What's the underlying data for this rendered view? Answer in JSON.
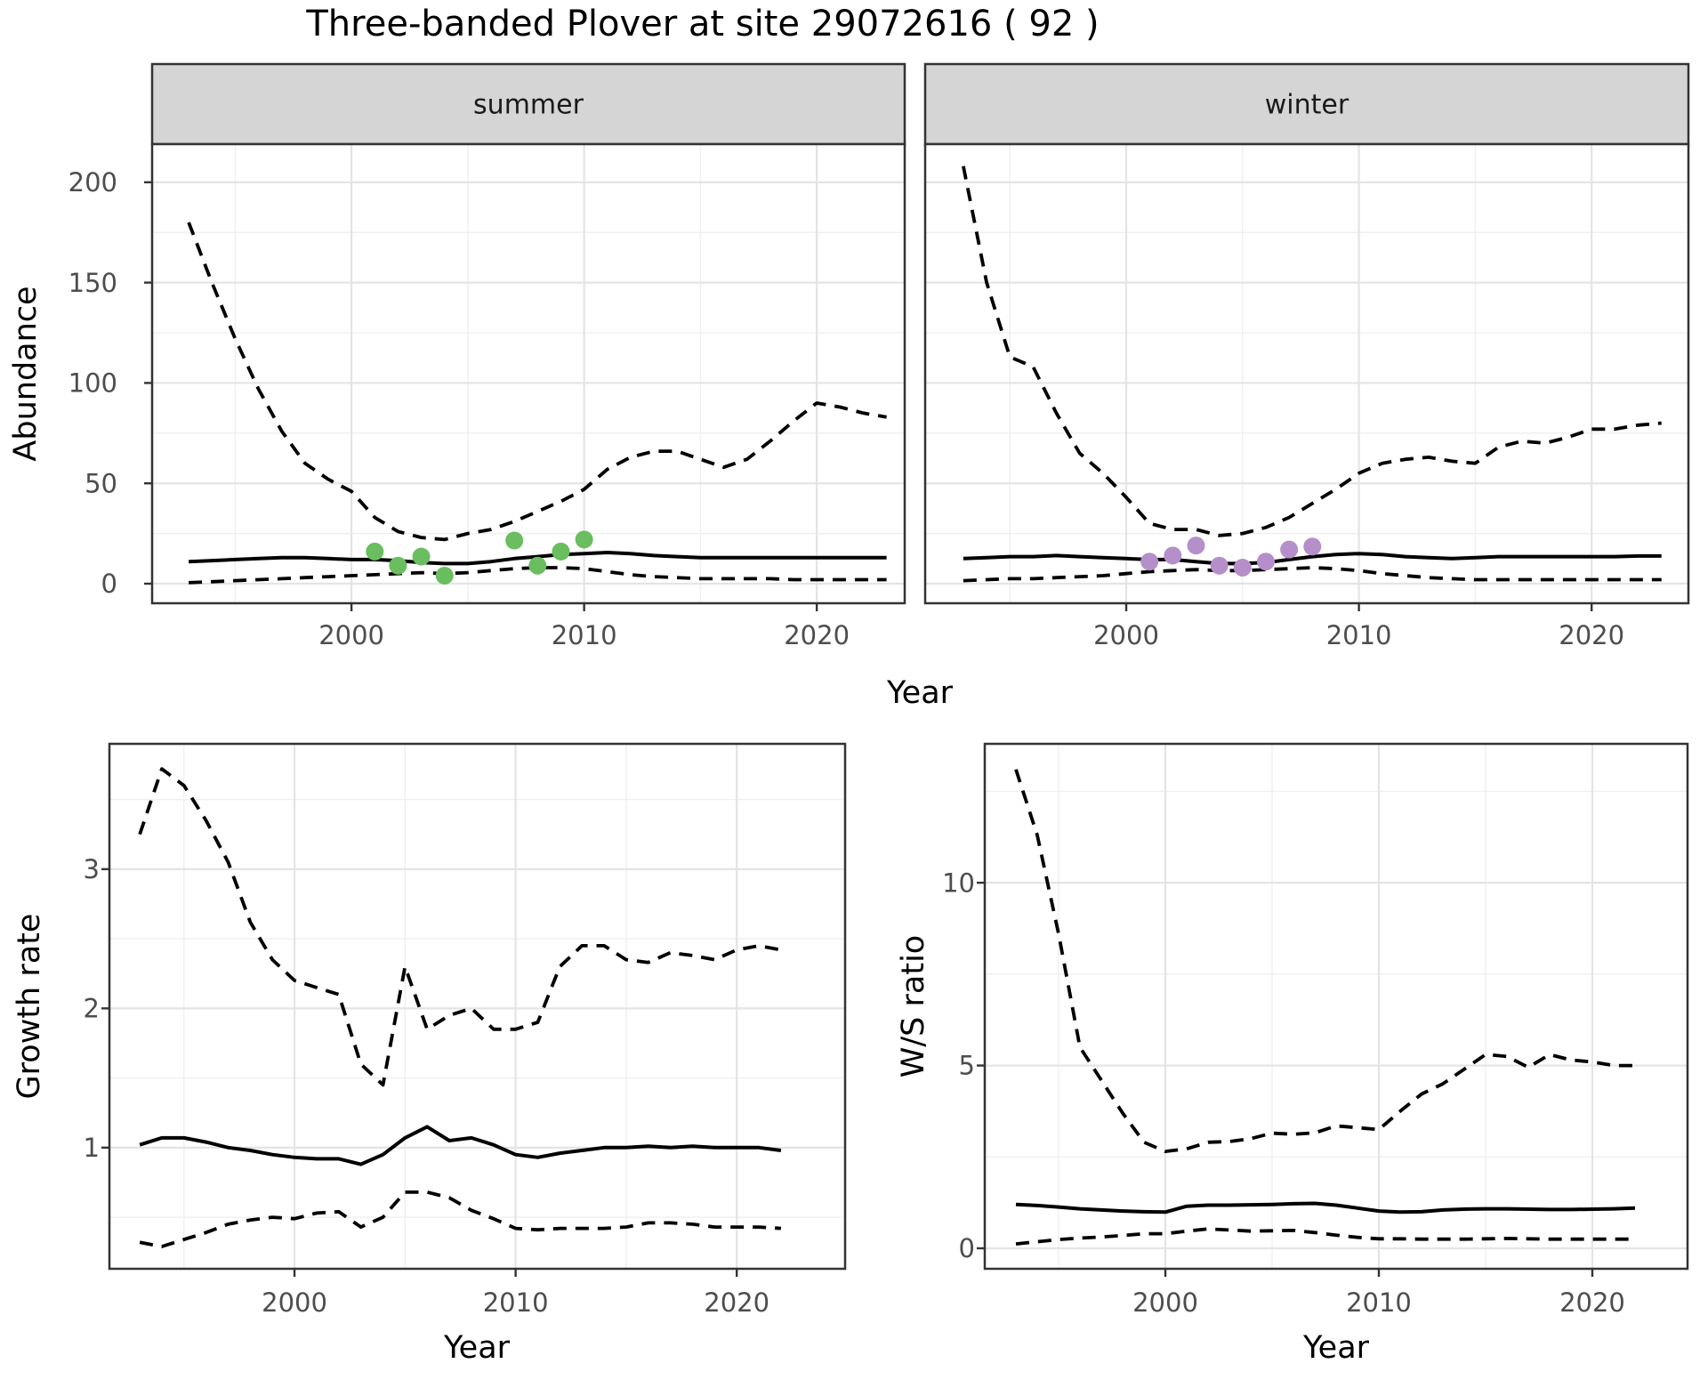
{
  "title": "Three-banded Plover at site 29072616 ( 92 )",
  "colors": {
    "summer_points": "#6abe5f",
    "winter_points": "#b58fc9",
    "line": "#000000",
    "strip_bg": "#d5d5d5",
    "panel_bg": "#ffffff",
    "grid_major": "#e4e4e4",
    "grid_minor": "#efefef",
    "panel_border": "#333333",
    "tick_text": "#4d4d4d",
    "axis_title_text": "#000000"
  },
  "chart_data": {
    "abundance": {
      "type": "line",
      "xlabel": "Year",
      "ylabel": "Abundance",
      "facets": [
        "summer",
        "winter"
      ],
      "legend": "none",
      "grid": "on",
      "years": [
        1993,
        1994,
        1995,
        1996,
        1997,
        1998,
        1999,
        2000,
        2001,
        2002,
        2003,
        2004,
        2005,
        2006,
        2007,
        2008,
        2009,
        2010,
        2011,
        2012,
        2013,
        2014,
        2015,
        2016,
        2017,
        2018,
        2019,
        2020,
        2021,
        2022,
        2023
      ],
      "x_ticks": [
        2000,
        2010,
        2020
      ],
      "x_minor_ticks": [
        1995,
        2005,
        2015
      ],
      "y_ticks": [
        0,
        50,
        100,
        150,
        200
      ],
      "y_minor_ticks": [
        25,
        75,
        125,
        175
      ],
      "ylim": [
        -9.75,
        219
      ],
      "panels": [
        {
          "facet": "summer",
          "xlim": [
            1991.43,
            2023.78
          ],
          "series": [
            {
              "name": "upper_ci",
              "style": "dashed",
              "values": [
                180,
                150,
                122,
                97,
                76,
                60,
                52,
                46,
                33,
                26,
                23,
                22,
                25,
                27,
                31,
                36,
                41,
                47,
                57,
                63,
                66,
                66,
                62,
                58,
                62,
                71,
                81,
                90,
                88,
                85,
                83
              ]
            },
            {
              "name": "median",
              "style": "solid",
              "values": [
                11,
                11.5,
                12,
                12.5,
                13,
                13,
                12.5,
                12,
                12,
                11.5,
                10.5,
                10,
                10,
                11,
                12.5,
                13.5,
                14.5,
                15,
                15.5,
                15,
                14,
                13.5,
                13,
                13,
                13,
                13,
                13,
                13,
                13,
                13,
                13
              ]
            },
            {
              "name": "lower_ci",
              "style": "dashed",
              "values": [
                0.5,
                1,
                1.5,
                2,
                2.5,
                3,
                3.5,
                4,
                4.5,
                5,
                5.5,
                5,
                5.5,
                6.5,
                7.5,
                8,
                8,
                7.5,
                6,
                4.5,
                3.5,
                3,
                2.5,
                2.5,
                2.5,
                2.5,
                2,
                2,
                2,
                2,
                2
              ]
            }
          ],
          "observations": {
            "years": [
              2001,
              2002,
              2003,
              2004,
              2007,
              2008,
              2009,
              2010
            ],
            "values": [
              16,
              9,
              13.5,
              4,
              21.5,
              9,
              16,
              22
            ],
            "color": "#6abe5f"
          }
        },
        {
          "facet": "winter",
          "xlim": [
            1991.36,
            2024.16
          ],
          "series": [
            {
              "name": "upper_ci",
              "style": "dashed",
              "values": [
                208,
                150,
                113,
                108,
                85,
                65,
                55,
                43,
                30,
                27,
                27,
                24,
                25,
                28,
                33,
                40,
                47,
                55,
                60,
                62,
                63,
                61,
                60,
                68,
                71,
                70,
                73,
                77,
                77,
                79,
                80
              ]
            },
            {
              "name": "median",
              "style": "solid",
              "values": [
                12.5,
                13,
                13.5,
                13.5,
                14,
                13.5,
                13,
                12.5,
                12,
                12,
                11,
                10,
                10,
                10.5,
                12,
                13.5,
                14.5,
                15,
                14.5,
                13.5,
                13,
                12.5,
                13,
                13.5,
                13.5,
                13.5,
                13.5,
                13.5,
                13.5,
                13.8,
                13.8
              ]
            },
            {
              "name": "lower_ci",
              "style": "dashed",
              "values": [
                1.5,
                2,
                2.5,
                2.5,
                3,
                3.5,
                4,
                5,
                6,
                6.5,
                7,
                6.5,
                6.5,
                7,
                7.5,
                8,
                7.5,
                6.5,
                5,
                4,
                3,
                2.5,
                2,
                2,
                2,
                2,
                2,
                2,
                2,
                2,
                2
              ]
            }
          ],
          "observations": {
            "years": [
              2001,
              2002,
              2003,
              2004,
              2005,
              2006,
              2007,
              2008
            ],
            "values": [
              11,
              14,
              19,
              9,
              8,
              11,
              17,
              18.5
            ],
            "color": "#b58fc9"
          }
        }
      ]
    },
    "growth_rate": {
      "type": "line",
      "xlabel": "Year",
      "ylabel": "Growth rate",
      "grid": "on",
      "years": [
        1993,
        1994,
        1995,
        1996,
        1997,
        1998,
        1999,
        2000,
        2001,
        2002,
        2003,
        2004,
        2005,
        2006,
        2007,
        2008,
        2009,
        2010,
        2011,
        2012,
        2013,
        2014,
        2015,
        2016,
        2017,
        2018,
        2019,
        2020,
        2021,
        2022
      ],
      "x_ticks": [
        2000,
        2010,
        2020
      ],
      "x_minor_ticks": [
        1995,
        2005,
        2015
      ],
      "y_ticks": [
        1,
        2,
        3
      ],
      "y_minor_ticks": [
        0.5,
        1.5,
        2.5,
        3.5
      ],
      "ylim": [
        0.13,
        3.9
      ],
      "xlim": [
        1991.63,
        2024.9
      ],
      "series": [
        {
          "name": "upper_ci",
          "style": "dashed",
          "values": [
            3.25,
            3.72,
            3.6,
            3.35,
            3.05,
            2.62,
            2.35,
            2.2,
            2.15,
            2.1,
            1.6,
            1.45,
            2.3,
            1.85,
            1.95,
            2.0,
            1.85,
            1.85,
            1.9,
            2.3,
            2.45,
            2.45,
            2.35,
            2.33,
            2.4,
            2.38,
            2.35,
            2.42,
            2.45,
            2.42
          ]
        },
        {
          "name": "median",
          "style": "solid",
          "values": [
            1.02,
            1.07,
            1.07,
            1.04,
            1.0,
            0.98,
            0.95,
            0.93,
            0.92,
            0.92,
            0.88,
            0.95,
            1.07,
            1.15,
            1.05,
            1.07,
            1.02,
            0.95,
            0.93,
            0.96,
            0.98,
            1.0,
            1.0,
            1.01,
            1.0,
            1.01,
            1.0,
            1.0,
            1.0,
            0.98
          ]
        },
        {
          "name": "lower_ci",
          "style": "dashed",
          "values": [
            0.32,
            0.29,
            0.34,
            0.39,
            0.45,
            0.48,
            0.5,
            0.49,
            0.53,
            0.54,
            0.43,
            0.5,
            0.68,
            0.68,
            0.64,
            0.55,
            0.49,
            0.42,
            0.41,
            0.42,
            0.42,
            0.42,
            0.43,
            0.46,
            0.46,
            0.45,
            0.43,
            0.43,
            0.43,
            0.42
          ]
        }
      ]
    },
    "ws_ratio": {
      "type": "line",
      "xlabel": "Year",
      "ylabel": "W/S ratio",
      "grid": "on",
      "years": [
        1993,
        1994,
        1995,
        1996,
        1997,
        1998,
        1999,
        2000,
        2001,
        2002,
        2003,
        2004,
        2005,
        2006,
        2007,
        2008,
        2009,
        2010,
        2011,
        2012,
        2013,
        2014,
        2015,
        2016,
        2017,
        2018,
        2019,
        2020,
        2021,
        2022
      ],
      "x_ticks": [
        2000,
        2010,
        2020
      ],
      "x_minor_ticks": [
        1995,
        2005,
        2015
      ],
      "y_ticks": [
        0,
        5,
        10
      ],
      "y_minor_ticks": [
        2.5,
        7.5,
        12.5
      ],
      "ylim": [
        -0.56,
        13.8
      ],
      "xlim": [
        1991.54,
        2024.46
      ],
      "series": [
        {
          "name": "upper_ci",
          "style": "dashed",
          "values": [
            13.1,
            11.3,
            8.6,
            5.5,
            4.6,
            3.7,
            2.9,
            2.65,
            2.72,
            2.9,
            2.92,
            3.0,
            3.15,
            3.12,
            3.16,
            3.35,
            3.3,
            3.25,
            3.75,
            4.22,
            4.5,
            4.9,
            5.3,
            5.25,
            4.95,
            5.3,
            5.15,
            5.1,
            5.0,
            5.0
          ]
        },
        {
          "name": "median",
          "style": "solid",
          "values": [
            1.2,
            1.17,
            1.13,
            1.08,
            1.05,
            1.02,
            1.0,
            0.99,
            1.15,
            1.18,
            1.18,
            1.19,
            1.2,
            1.22,
            1.23,
            1.18,
            1.1,
            1.02,
            0.99,
            1.0,
            1.05,
            1.07,
            1.08,
            1.08,
            1.07,
            1.06,
            1.06,
            1.07,
            1.08,
            1.1
          ]
        },
        {
          "name": "lower_ci",
          "style": "dashed",
          "values": [
            0.12,
            0.18,
            0.24,
            0.28,
            0.31,
            0.35,
            0.4,
            0.4,
            0.47,
            0.53,
            0.5,
            0.47,
            0.48,
            0.49,
            0.43,
            0.36,
            0.3,
            0.26,
            0.26,
            0.25,
            0.25,
            0.25,
            0.26,
            0.27,
            0.26,
            0.25,
            0.25,
            0.25,
            0.25,
            0.25
          ]
        }
      ]
    }
  }
}
